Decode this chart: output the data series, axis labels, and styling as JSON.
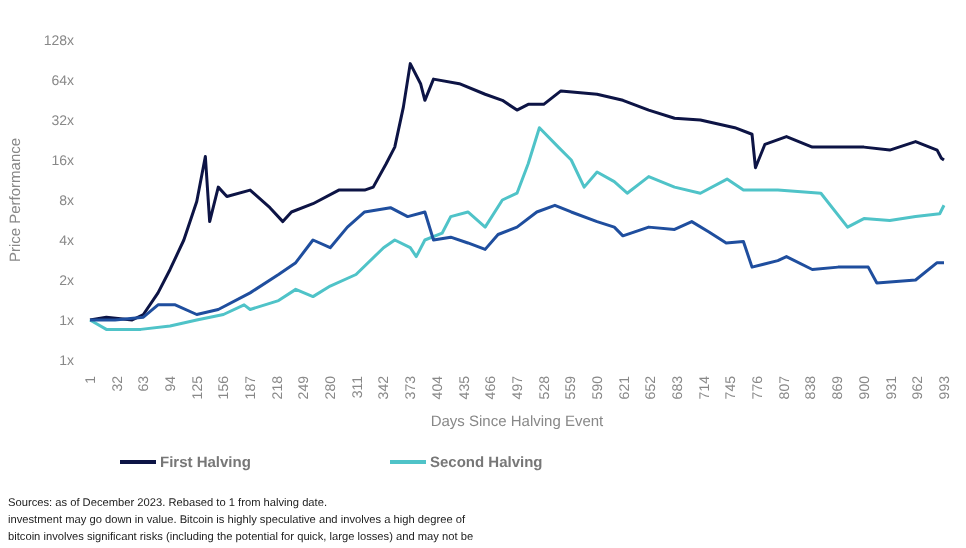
{
  "chart_data": {
    "type": "line",
    "xlabel": "Days Since Halving Event",
    "ylabel": "Price Performance",
    "log": true,
    "grid": false,
    "legend": "bottom",
    "line_style": "solid",
    "xlim": [
      1,
      993
    ],
    "xticks": [
      1,
      32,
      63,
      94,
      125,
      156,
      187,
      218,
      249,
      280,
      311,
      342,
      373,
      404,
      435,
      466,
      497,
      528,
      559,
      590,
      621,
      652,
      683,
      714,
      745,
      776,
      807,
      838,
      869,
      900,
      931,
      962,
      993
    ],
    "ylim": [
      0.5,
      128
    ],
    "yticks": [
      {
        "value": 0.5,
        "label": "1x"
      },
      {
        "value": 1,
        "label": "1x"
      },
      {
        "value": 2,
        "label": "2x"
      },
      {
        "value": 4,
        "label": "4x"
      },
      {
        "value": 8,
        "label": "8x"
      },
      {
        "value": 16,
        "label": "16x"
      },
      {
        "value": 32,
        "label": "32x"
      },
      {
        "value": 64,
        "label": "64x"
      },
      {
        "value": 128,
        "label": "128x"
      }
    ],
    "series": [
      {
        "name": "First Halving",
        "color": "#0d1445",
        "x": [
          1,
          20,
          50,
          63,
          80,
          94,
          110,
          125,
          135,
          140,
          150,
          160,
          187,
          210,
          225,
          235,
          260,
          290,
          320,
          330,
          345,
          355,
          365,
          373,
          385,
          390,
          400,
          430,
          460,
          480,
          497,
          510,
          528,
          548,
          590,
          620,
          650,
          680,
          710,
          750,
          770,
          774,
          785,
          810,
          840,
          900,
          930,
          960,
          985,
          990,
          993
        ],
        "values": [
          1,
          1.05,
          1,
          1.1,
          1.6,
          2.4,
          4,
          7.8,
          17,
          5.5,
          10,
          8.5,
          9.5,
          7,
          5.5,
          6.5,
          7.5,
          9.5,
          9.5,
          10,
          15,
          20,
          40,
          85,
          60,
          45,
          65,
          60,
          50,
          45,
          38,
          42,
          42,
          53,
          50,
          45,
          38,
          33,
          32,
          28,
          25,
          14,
          21,
          24,
          20,
          20,
          19,
          22,
          19,
          16.5,
          16
        ]
      },
      {
        "name": "Second Halving",
        "color": "#4fc3c8",
        "x": [
          1,
          20,
          60,
          94,
          125,
          156,
          180,
          187,
          220,
          240,
          260,
          280,
          310,
          342,
          355,
          373,
          380,
          390,
          410,
          420,
          440,
          460,
          480,
          497,
          510,
          523,
          545,
          560,
          575,
          590,
          610,
          625,
          650,
          680,
          710,
          741,
          760,
          800,
          850,
          881,
          900,
          930,
          960,
          988,
          993
        ],
        "values": [
          1,
          0.85,
          0.85,
          0.9,
          1,
          1.1,
          1.3,
          1.2,
          1.4,
          1.7,
          1.5,
          1.8,
          2.2,
          3.5,
          4,
          3.5,
          3,
          4,
          4.5,
          6,
          6.5,
          5,
          8,
          9,
          15,
          28,
          20,
          16,
          10,
          13,
          11,
          9,
          12,
          10,
          9,
          11.5,
          9.5,
          9.5,
          9,
          5,
          5.8,
          5.6,
          6,
          6.3,
          7.3
        ]
      },
      {
        "color": "#1f4e9e",
        "x": [
          1,
          30,
          63,
          80,
          100,
          125,
          150,
          187,
          220,
          240,
          260,
          280,
          300,
          320,
          350,
          370,
          390,
          400,
          420,
          440,
          460,
          475,
          497,
          520,
          541,
          560,
          590,
          610,
          620,
          650,
          680,
          700,
          720,
          740,
          760,
          770,
          800,
          810,
          840,
          870,
          905,
          915,
          960,
          985,
          993
        ],
        "values": [
          1,
          1,
          1.05,
          1.3,
          1.3,
          1.1,
          1.2,
          1.6,
          2.2,
          2.7,
          4,
          3.5,
          5,
          6.5,
          7,
          6,
          6.5,
          4,
          4.2,
          3.8,
          3.4,
          4.4,
          5,
          6.5,
          7.3,
          6.5,
          5.5,
          5,
          4.3,
          5,
          4.8,
          5.5,
          4.6,
          3.8,
          3.9,
          2.5,
          2.8,
          3,
          2.4,
          2.5,
          2.5,
          1.9,
          2,
          2.7,
          2.7
        ]
      }
    ],
    "annotations": [
      "Sources: as of December 2023. Rebased to 1 from halving date.",
      "investment may go down in value. Bitcoin is highly speculative and involves a high degree of",
      "bitcoin involves significant risks (including the potential for quick, large losses) and may not be"
    ]
  }
}
